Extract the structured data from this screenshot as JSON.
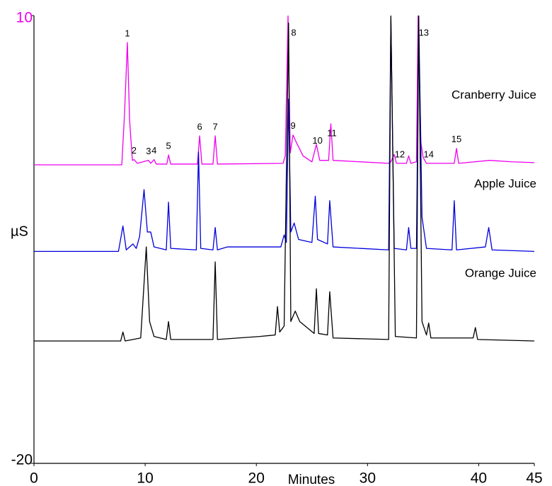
{
  "chart_data": {
    "type": "line",
    "x_label": "Minutes",
    "y_label": "µS",
    "xlim": [
      0,
      45
    ],
    "ylim": [
      -20,
      10
    ],
    "xticks": [
      0,
      10,
      20,
      30,
      40,
      45
    ],
    "yticks": [
      -20,
      10
    ],
    "series": [
      {
        "name": "Cranberry Juice",
        "color": "#ee00ee",
        "x": [
          0,
          7.9,
          8.15,
          8.4,
          8.6,
          8.85,
          9.0,
          9.3,
          10.3,
          10.5,
          10.8,
          11.0,
          11.95,
          12.1,
          12.3,
          14.7,
          14.9,
          15.1,
          16.1,
          16.3,
          16.5,
          22.4,
          22.6,
          22.85,
          23.05,
          23.3,
          23.6,
          24.2,
          25.0,
          25.4,
          25.7,
          26.5,
          26.7,
          26.9,
          31.9,
          32.1,
          32.4,
          32.6,
          33.5,
          33.7,
          33.9,
          34.4,
          34.55,
          34.8,
          35.0,
          35.3,
          37.8,
          38.0,
          38.2,
          41,
          43,
          45
        ],
        "values": [
          0,
          0,
          3.5,
          8.2,
          3,
          0.3,
          0.35,
          0.1,
          0.3,
          0.1,
          0.35,
          0.05,
          0.05,
          0.66,
          0.05,
          0.05,
          1.94,
          0.05,
          0.05,
          1.94,
          0.05,
          0.1,
          0.6,
          10,
          0.8,
          2.0,
          1.5,
          0.6,
          0.2,
          1.37,
          0.3,
          0.3,
          2.75,
          0.3,
          0.1,
          0.2,
          0.7,
          0.1,
          0.1,
          0.6,
          0.1,
          0.2,
          10,
          1.5,
          0.5,
          0.1,
          0.1,
          1.1,
          0.1,
          0.3,
          0.2,
          0.15
        ]
      },
      {
        "name": "Apple Juice",
        "color": "#0000dd",
        "x": [
          0,
          7.6,
          8.0,
          8.3,
          8.9,
          9.2,
          9.5,
          9.9,
          10.2,
          10.5,
          10.8,
          11.9,
          12.1,
          12.3,
          14.6,
          14.8,
          15.0,
          16.1,
          16.3,
          16.5,
          17.4,
          22.2,
          22.5,
          22.7,
          22.9,
          23.1,
          23.4,
          23.8,
          25.0,
          25.3,
          25.5,
          26.4,
          26.6,
          26.9,
          31.9,
          32.1,
          32.4,
          33.5,
          33.7,
          33.9,
          34.4,
          34.6,
          34.9,
          35.3,
          37.6,
          37.8,
          38.0,
          40.6,
          40.9,
          41.2,
          45
        ],
        "values": [
          -5.8,
          -5.8,
          -4.1,
          -5.7,
          -5.3,
          -5.6,
          -4.8,
          -1.66,
          -4.5,
          -4.5,
          -5.5,
          -5.7,
          -2.5,
          -5.6,
          -5.7,
          0.85,
          -5.6,
          -5.7,
          -4.2,
          -5.7,
          -5.5,
          -5.5,
          -4.7,
          -5.2,
          4.4,
          -4.5,
          -3.9,
          -5.0,
          -5.2,
          -2.1,
          -5.0,
          -5.3,
          -2.4,
          -5.5,
          -5.7,
          9.8,
          -5.6,
          -5.7,
          -4.2,
          -5.6,
          -5.6,
          10,
          -3.5,
          -5.6,
          -5.7,
          -2.4,
          -5.7,
          -5.5,
          -4.2,
          -5.7,
          -5.8
        ]
      },
      {
        "name": "Orange Juice",
        "color": "#000000",
        "x": [
          0,
          7.8,
          8.0,
          8.2,
          9.6,
          10.1,
          10.4,
          10.8,
          11.9,
          12.1,
          12.3,
          16.1,
          16.3,
          16.5,
          20.3,
          21.7,
          21.9,
          22.1,
          22.5,
          22.9,
          23.1,
          23.5,
          23.9,
          25.2,
          25.4,
          25.6,
          26.4,
          26.6,
          26.9,
          31.9,
          32.1,
          32.5,
          34.4,
          34.6,
          34.9,
          35.3,
          35.5,
          35.7,
          39.5,
          39.7,
          39.9,
          45
        ],
        "values": [
          -11.8,
          -11.8,
          -11.2,
          -11.8,
          -11.6,
          -5.5,
          -10.5,
          -11.5,
          -11.7,
          -10.5,
          -11.7,
          -11.7,
          -6.5,
          -11.7,
          -11.5,
          -11.4,
          -9.5,
          -11.2,
          -10.8,
          9.5,
          -10.5,
          -9.8,
          -10.5,
          -11.3,
          -8.3,
          -11.3,
          -11.4,
          -8.5,
          -11.6,
          -11.7,
          10,
          -11.5,
          -11.6,
          10,
          -10.5,
          -11.4,
          -10.6,
          -11.6,
          -11.6,
          -10.9,
          -11.7,
          -11.8
        ]
      }
    ],
    "annotations": [
      {
        "text": "1",
        "x": 8.4
      },
      {
        "text": "2",
        "x": 9.0
      },
      {
        "text": "3",
        "x": 10.3
      },
      {
        "text": "4",
        "x": 10.8
      },
      {
        "text": "5",
        "x": 12.1
      },
      {
        "text": "6",
        "x": 14.9
      },
      {
        "text": "7",
        "x": 16.3
      },
      {
        "text": "8",
        "x": 22.85
      },
      {
        "text": "9",
        "x": 23.3
      },
      {
        "text": "10",
        "x": 25.5
      },
      {
        "text": "11",
        "x": 26.8
      },
      {
        "text": "12",
        "x": 32.9
      },
      {
        "text": "13",
        "x": 34.55
      },
      {
        "text": "14",
        "x": 35.5
      },
      {
        "text": "15",
        "x": 38.0
      }
    ]
  }
}
